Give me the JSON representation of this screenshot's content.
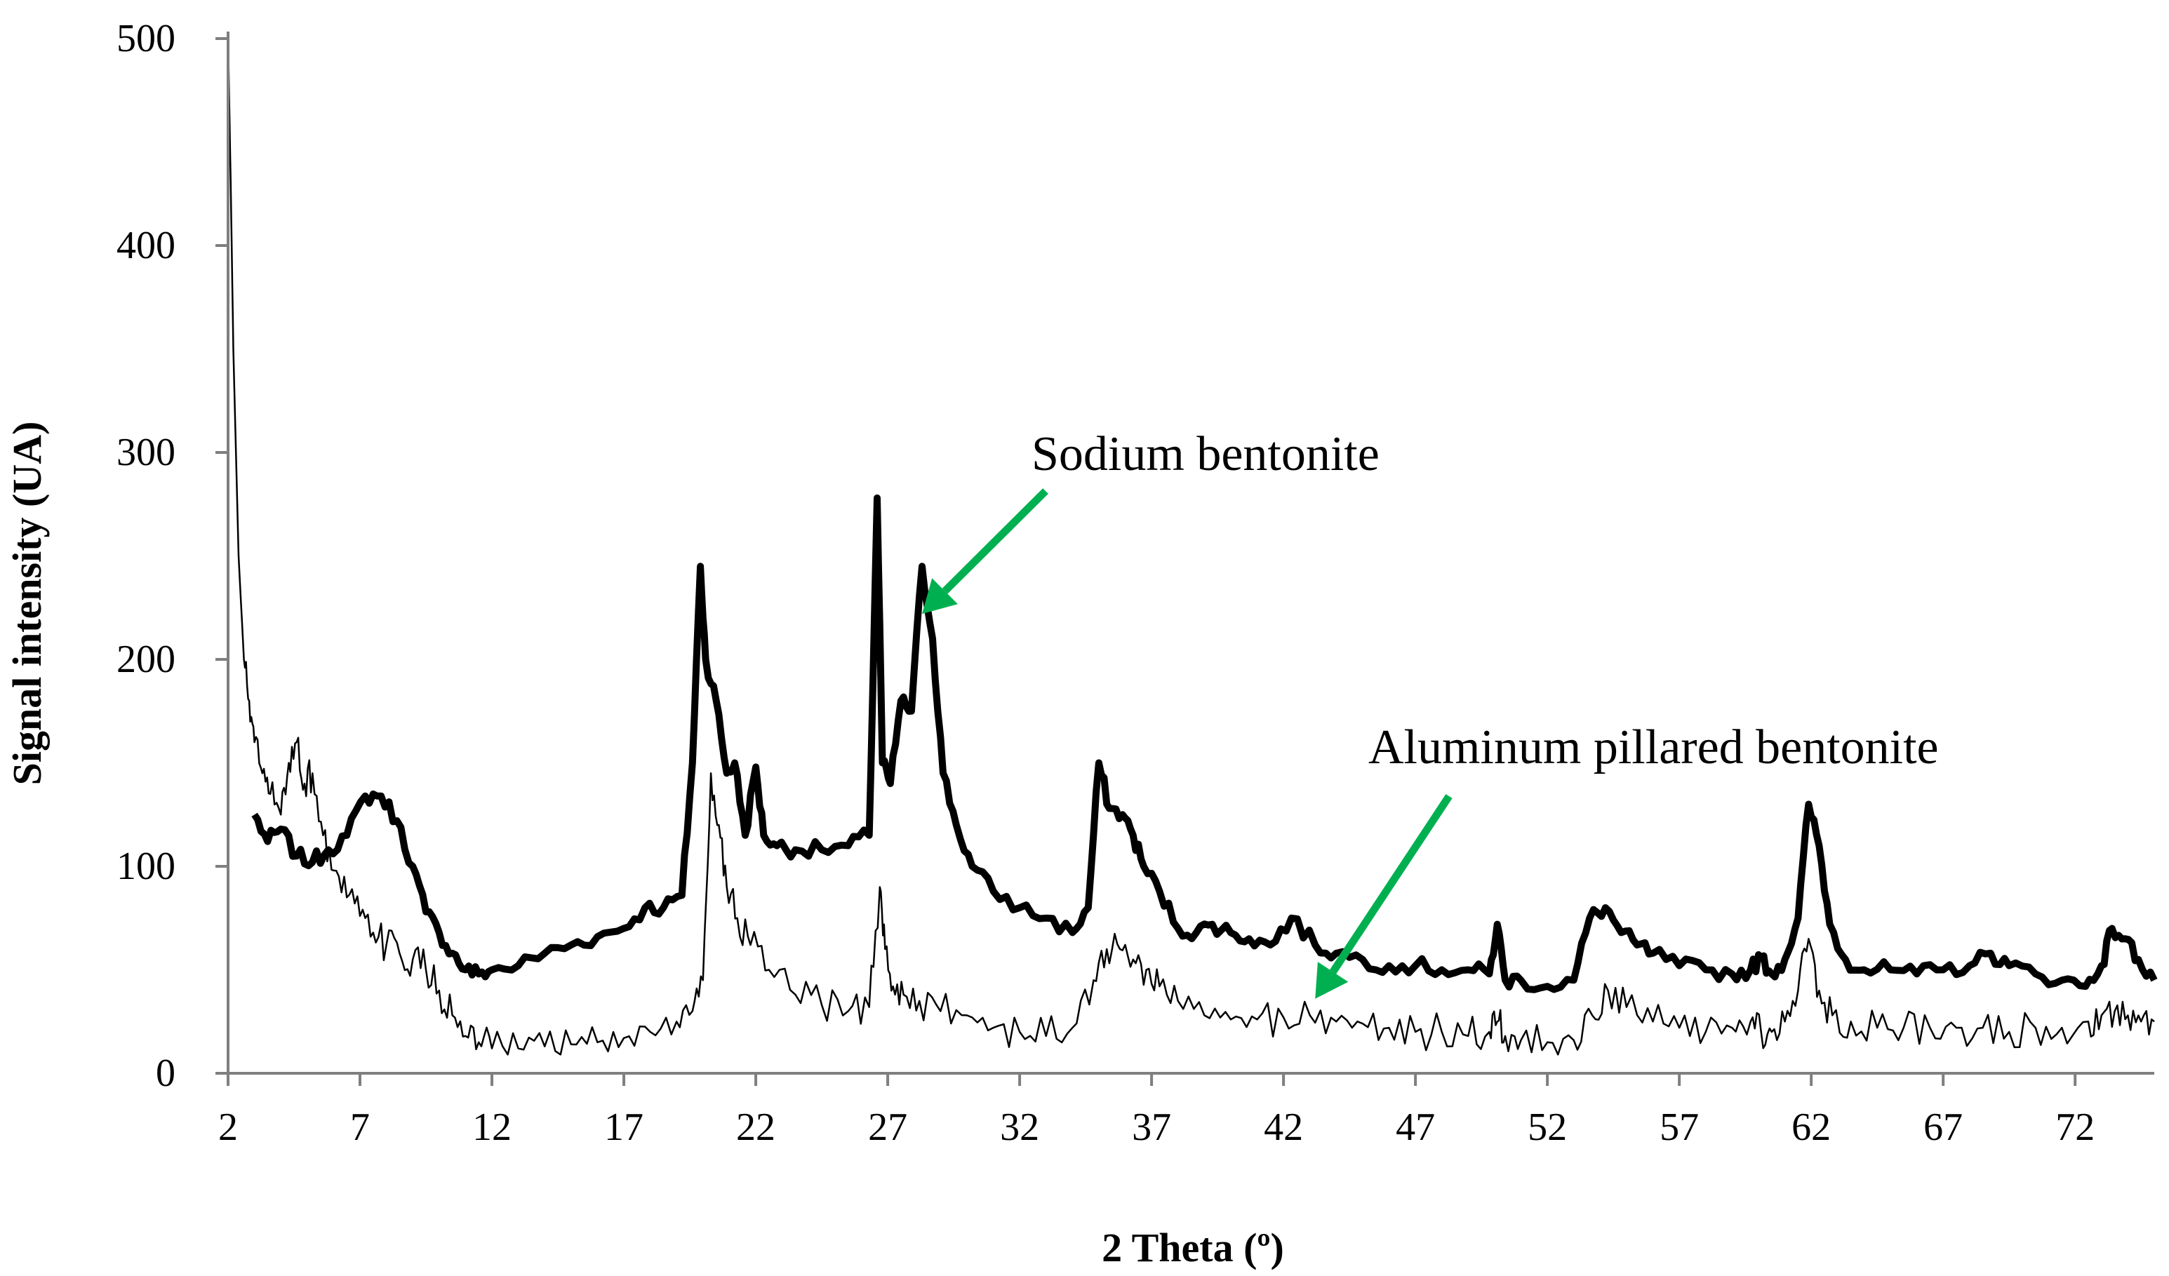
{
  "chart_data": {
    "type": "line",
    "title": "",
    "xlabel": "2 Theta (º)",
    "ylabel": "Signal intensity (UA)",
    "xlim": [
      2,
      75
    ],
    "ylim": [
      0,
      500
    ],
    "xticks": [
      2,
      7,
      12,
      17,
      22,
      27,
      32,
      37,
      42,
      47,
      52,
      57,
      62,
      67,
      72
    ],
    "yticks": [
      0,
      100,
      200,
      300,
      400,
      500
    ],
    "grid": false,
    "legend": "none",
    "annotations": [
      {
        "text": "Sodium bentonite",
        "arrow_color": "#00b050",
        "target": {
          "x": 28.3,
          "y": 222
        }
      },
      {
        "text": "Aluminum pillared bentonite",
        "arrow_color": "#00b050",
        "target": {
          "x": 43.2,
          "y": 36
        }
      }
    ],
    "series": [
      {
        "line_color": "#000000",
        "line_weight": "thick",
        "x": [
          3.0,
          3.5,
          4.0,
          4.6,
          5.2,
          5.8,
          6.5,
          7.2,
          7.8,
          8.4,
          9.0,
          9.5,
          10.0,
          10.5,
          11.0,
          11.5,
          12.0,
          13.0,
          14.0,
          15.0,
          16.0,
          17.0,
          17.8,
          18.5,
          19.2,
          19.6,
          19.9,
          20.1,
          20.5,
          20.9,
          21.2,
          21.6,
          22.0,
          22.3,
          22.8,
          23.5,
          24.5,
          25.5,
          26.3,
          26.6,
          26.8,
          27.1,
          27.5,
          27.9,
          28.3,
          28.7,
          29.1,
          29.6,
          30.2,
          31.0,
          32.0,
          33.0,
          34.0,
          34.6,
          35.0,
          35.4,
          35.9,
          36.3,
          36.7,
          37.3,
          38.0,
          38.7,
          39.3,
          40.0,
          40.7,
          41.5,
          42.3,
          43.2,
          44.0,
          45.0,
          46.0,
          47.0,
          48.0,
          49.0,
          49.8,
          50.1,
          50.4,
          51.0,
          52.0,
          53.0,
          53.6,
          54.2,
          54.8,
          55.4,
          56.0,
          57.0,
          58.0,
          59.0,
          59.7,
          60.1,
          60.5,
          61.0,
          61.5,
          61.9,
          62.3,
          62.7,
          63.3,
          64.0,
          65.0,
          66.0,
          67.0,
          68.0,
          68.8,
          69.5,
          70.5,
          71.5,
          72.4,
          73.0,
          73.4,
          73.9,
          74.4,
          75.0
        ],
        "y": [
          125,
          112,
          118,
          105,
          102,
          108,
          115,
          134,
          134,
          122,
          100,
          78,
          68,
          58,
          50,
          48,
          50,
          52,
          58,
          62,
          66,
          70,
          80,
          80,
          86,
          150,
          245,
          200,
          180,
          145,
          150,
          115,
          148,
          115,
          110,
          108,
          108,
          110,
          115,
          278,
          150,
          140,
          180,
          175,
          245,
          210,
          145,
          120,
          100,
          88,
          80,
          75,
          68,
          80,
          150,
          128,
          125,
          115,
          100,
          88,
          70,
          68,
          72,
          68,
          65,
          62,
          75,
          62,
          58,
          55,
          52,
          52,
          50,
          50,
          48,
          72,
          45,
          45,
          42,
          45,
          75,
          80,
          68,
          62,
          58,
          52,
          50,
          48,
          50,
          56,
          48,
          55,
          75,
          130,
          110,
          72,
          55,
          50,
          50,
          48,
          50,
          52,
          58,
          52,
          48,
          45,
          42,
          52,
          70,
          65,
          55,
          45
        ]
      },
      {
        "line_color": "#000000",
        "line_weight": "thin",
        "x": [
          2.0,
          2.1,
          2.2,
          2.4,
          2.6,
          2.8,
          3.0,
          3.3,
          3.6,
          4.0,
          4.3,
          4.6,
          4.9,
          5.2,
          5.6,
          6.0,
          6.5,
          7.0,
          7.5,
          8.0,
          8.5,
          9.0,
          9.5,
          10.0,
          10.5,
          11.0,
          11.5,
          12.0,
          13.0,
          14.0,
          15.0,
          16.0,
          17.0,
          18.0,
          19.0,
          19.6,
          20.0,
          20.3,
          20.6,
          20.9,
          21.3,
          21.8,
          22.5,
          23.5,
          24.5,
          25.5,
          26.3,
          26.7,
          26.9,
          27.2,
          27.6,
          28.2,
          29.0,
          30.0,
          31.0,
          32.0,
          33.0,
          34.0,
          34.8,
          35.3,
          35.8,
          36.3,
          36.8,
          37.3,
          38.0,
          39.0,
          40.0,
          41.0,
          42.0,
          43.0,
          44.0,
          45.0,
          46.0,
          47.0,
          48.0,
          49.0,
          49.8,
          50.1,
          50.4,
          51.0,
          52.0,
          53.0,
          53.7,
          54.3,
          55.0,
          56.0,
          57.0,
          58.0,
          59.0,
          59.7,
          60.1,
          60.5,
          61.0,
          61.5,
          61.9,
          62.3,
          62.8,
          63.5,
          64.5,
          65.5,
          66.5,
          67.5,
          68.5,
          69.5,
          70.5,
          71.5,
          72.5,
          73.0,
          73.5,
          74.0,
          74.5,
          75.0
        ],
        "y": [
          500,
          430,
          350,
          250,
          200,
          180,
          160,
          145,
          135,
          125,
          150,
          160,
          140,
          145,
          115,
          98,
          85,
          76,
          68,
          62,
          58,
          55,
          50,
          40,
          28,
          18,
          15,
          12,
          12,
          13,
          14,
          15,
          17,
          20,
          25,
          30,
          45,
          145,
          120,
          90,
          75,
          62,
          50,
          38,
          33,
          30,
          32,
          90,
          60,
          42,
          38,
          35,
          30,
          28,
          22,
          20,
          18,
          22,
          45,
          60,
          60,
          55,
          50,
          42,
          35,
          28,
          26,
          26,
          27,
          28,
          25,
          24,
          22,
          20,
          20,
          18,
          20,
          25,
          18,
          16,
          15,
          16,
          28,
          40,
          32,
          25,
          22,
          20,
          22,
          25,
          20,
          20,
          25,
          40,
          65,
          40,
          28,
          25,
          22,
          22,
          22,
          22,
          22,
          20,
          22,
          22,
          25,
          28,
          30,
          28,
          25,
          25
        ]
      }
    ]
  }
}
